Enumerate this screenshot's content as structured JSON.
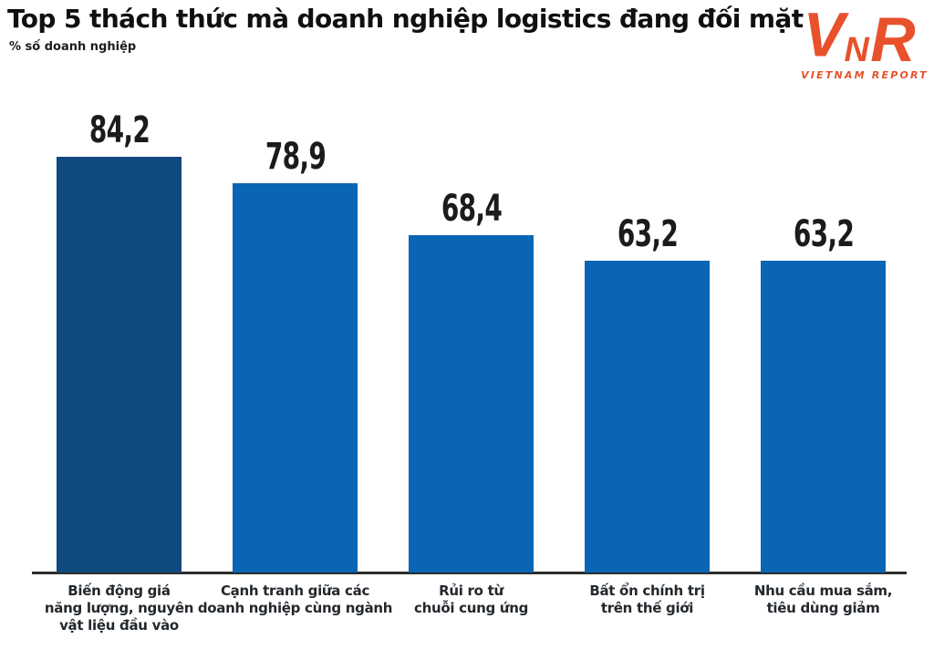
{
  "header": {
    "title": "Top 5 thách thức mà doanh nghiệp logistics đang đối mặt",
    "unit_label": "% số doanh nghiệp"
  },
  "logo": {
    "name": "Vietnam Report",
    "monogram_v": "V",
    "monogram_n": "N",
    "monogram_r": "R",
    "caption": "VIETNAM REPORT",
    "brand_color": "#E8512B"
  },
  "chart_data": {
    "type": "bar",
    "title": "Top 5 thách thức mà doanh nghiệp logistics đang đối mặt",
    "ylabel": "% số doanh nghiệp",
    "xlabel": "",
    "ylim": [
      0,
      100
    ],
    "grid": false,
    "legend": false,
    "categories": [
      "Biến động giá năng lượng, nguyên vật liệu đầu vào",
      "Cạnh tranh giữa các doanh nghiệp cùng ngành",
      "Rủi ro từ chuỗi cung ứng",
      "Bất ổn chính trị trên thế giới",
      "Nhu cầu mua sắm, tiêu dùng giảm"
    ],
    "category_lines": [
      [
        "Biến động giá",
        "năng lượng, nguyên",
        "vật liệu đầu vào"
      ],
      [
        "Cạnh tranh giữa các",
        "doanh nghiệp cùng ngành"
      ],
      [
        "Rủi ro từ",
        "chuỗi cung ứng"
      ],
      [
        "Bất ổn chính trị",
        "trên thế giới"
      ],
      [
        "Nhu cầu mua sắm,",
        "tiêu dùng giảm"
      ]
    ],
    "values": [
      84.2,
      78.9,
      68.4,
      63.2,
      63.2
    ],
    "value_labels": [
      "84,2",
      "78,9",
      "68,4",
      "63,2",
      "63,2"
    ],
    "bar_colors": [
      "#10497E",
      "#0A65B4",
      "#0A65B4",
      "#0A65B4",
      "#0A65B4"
    ],
    "highlight_index": 0,
    "axis_color": "#2d2d2d",
    "value_label_color": "#1b1b1b",
    "category_label_color": "#23282d"
  }
}
